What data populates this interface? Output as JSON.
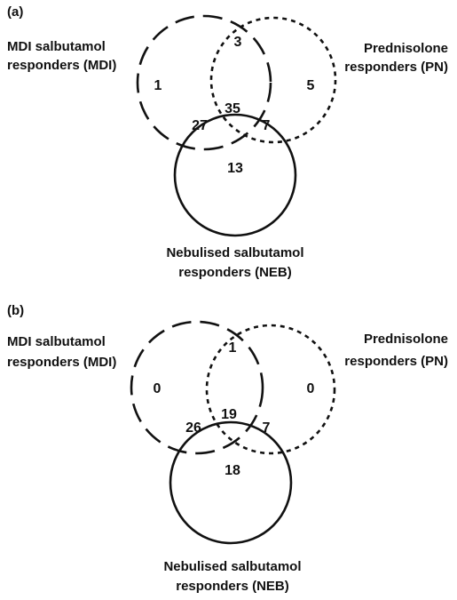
{
  "panels": [
    {
      "label": "(a)",
      "sets": [
        {
          "lines": [
            "MDI salbutamol",
            "responders (MDI)"
          ]
        },
        {
          "lines": [
            "Prednisolone",
            "responders (PN)"
          ]
        },
        {
          "lines": [
            "Nebulised salbutamol",
            "responders (NEB)"
          ]
        }
      ],
      "regions": {
        "mdi_only": 1,
        "mdi_pn": 3,
        "pn_only": 5,
        "all": 35,
        "mdi_neb": 27,
        "pn_neb": 7,
        "neb_only": 13
      }
    },
    {
      "label": "(b)",
      "sets": [
        {
          "lines": [
            "MDI salbutamol",
            "responders (MDI)"
          ]
        },
        {
          "lines": [
            "Prednisolone",
            "responders (PN)"
          ]
        },
        {
          "lines": [
            "Nebulised salbutamol",
            "responders (NEB)"
          ]
        }
      ],
      "regions": {
        "mdi_only": 0,
        "mdi_pn": 1,
        "pn_only": 0,
        "all": 19,
        "mdi_neb": 26,
        "pn_neb": 7,
        "neb_only": 18
      }
    }
  ]
}
